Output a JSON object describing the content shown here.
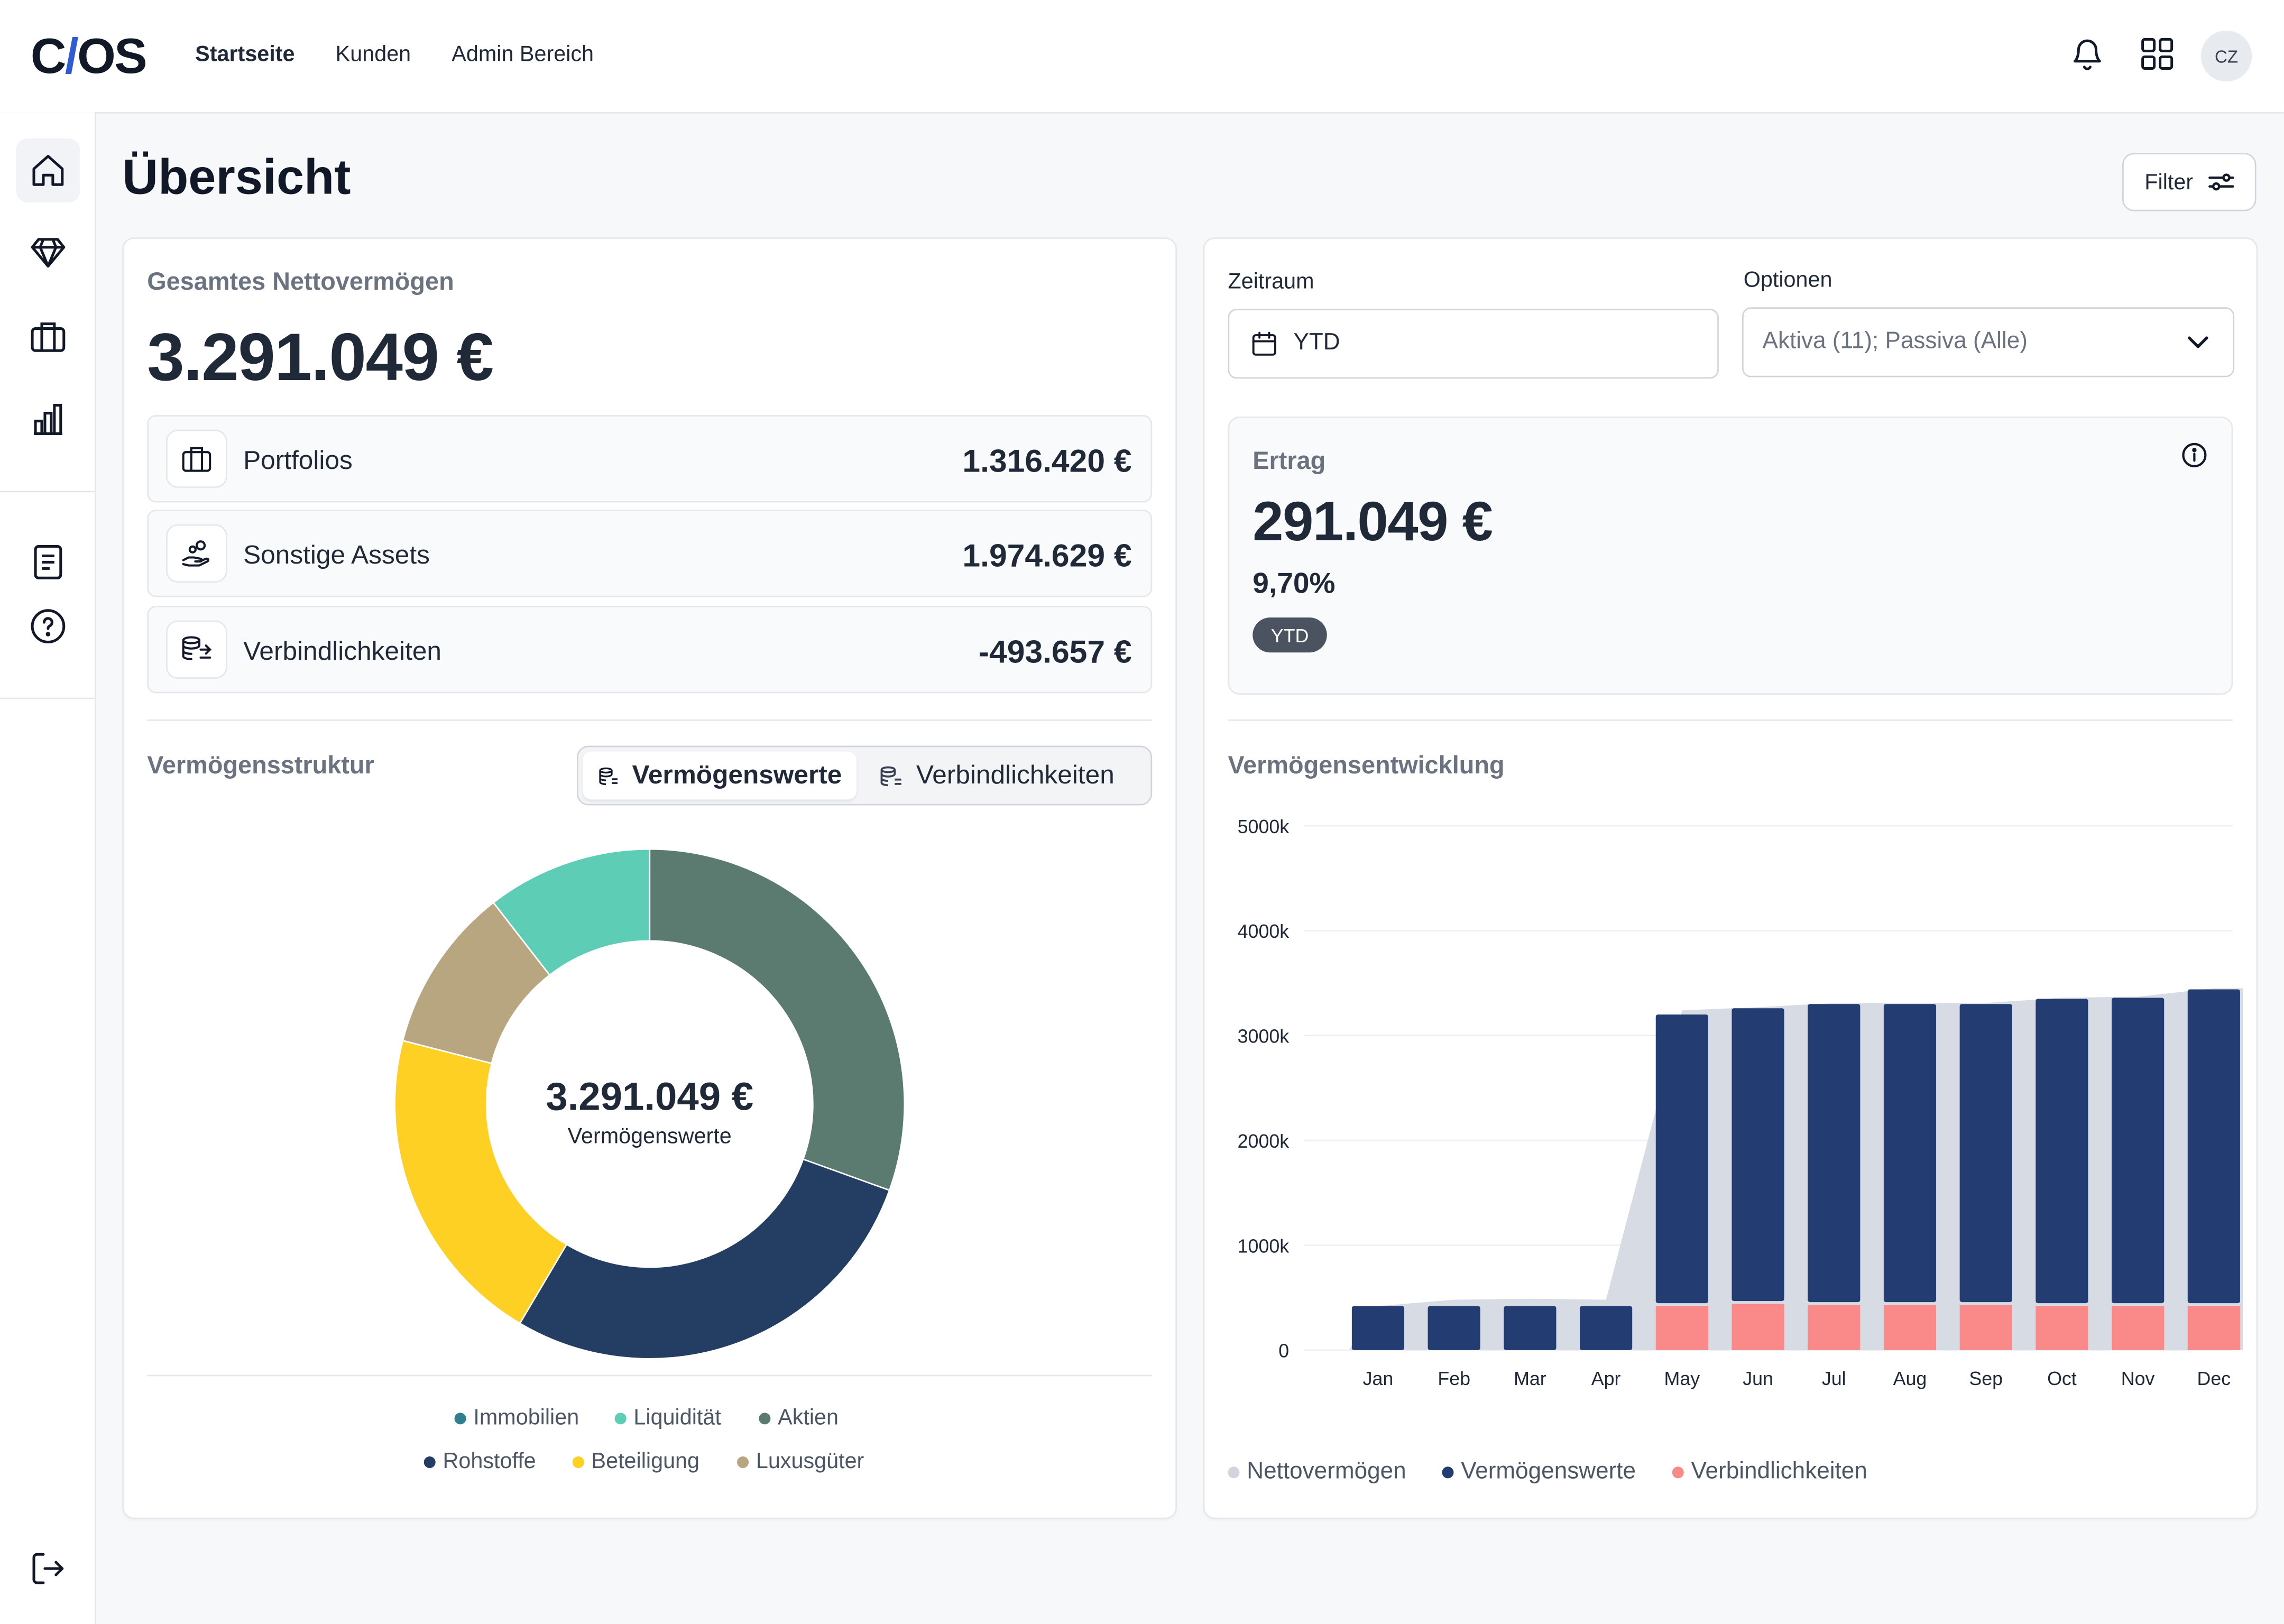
{
  "app": {
    "logo_text_a": "C",
    "logo_text_slash": "/",
    "logo_text_b": "OS",
    "nav": [
      "Startseite",
      "Kunden",
      "Admin Bereich"
    ],
    "avatar_initials": "CZ"
  },
  "page": {
    "title": "Übersicht",
    "filter_label": "Filter"
  },
  "networth": {
    "label": "Gesamtes Nettovermögen",
    "value": "3.291.049 €",
    "rows": [
      {
        "label": "Portfolios",
        "value": "1.316.420 €"
      },
      {
        "label": "Sonstige Assets",
        "value": "1.974.629 €"
      },
      {
        "label": "Verbindlichkeiten",
        "value": "-493.657 €"
      }
    ]
  },
  "structure": {
    "title": "Vermögensstruktur",
    "toggle": [
      "Vermögenswerte",
      "Verbindlichkeiten"
    ],
    "center_value": "3.291.049 €",
    "center_label": "Vermögenswerte",
    "legend": [
      {
        "label": "Immobilien",
        "color": "#2f7f8f"
      },
      {
        "label": "Liquidität",
        "color": "#5ecdb6"
      },
      {
        "label": "Aktien",
        "color": "#5b7b70"
      },
      {
        "label": "Rohstoffe",
        "color": "#233e62"
      },
      {
        "label": "Beteiligung",
        "color": "#fdd023"
      },
      {
        "label": "Luxusgüter",
        "color": "#b7a680"
      }
    ]
  },
  "filters": {
    "period_label": "Zeitraum",
    "period_value": "YTD",
    "options_label": "Optionen",
    "options_value": "Aktiva (11); Passiva (Alle)"
  },
  "ertrag": {
    "label": "Ertrag",
    "value": "291.049 €",
    "percent": "9,70%",
    "badge": "YTD"
  },
  "development": {
    "title": "Vermögensentwicklung"
  },
  "chart_data": [
    {
      "type": "pie",
      "title": "Vermögensstruktur",
      "categories": [
        "Aktien",
        "Rohstoffe",
        "Beteiligung",
        "Luxusgüter",
        "Liquidität",
        "Immobilien"
      ],
      "values": [
        30.5,
        28.0,
        20.5,
        10.5,
        10.5,
        0
      ],
      "colors": [
        "#5b7b70",
        "#233e62",
        "#fdd023",
        "#b7a680",
        "#5ecdb6",
        "#2f7f8f"
      ]
    },
    {
      "type": "bar",
      "title": "Vermögensentwicklung",
      "categories": [
        "Jan",
        "Feb",
        "Mar",
        "Apr",
        "May",
        "Jun",
        "Jul",
        "Aug",
        "Sep",
        "Oct",
        "Nov",
        "Dec"
      ],
      "yticks": [
        "0",
        "1000k",
        "2000k",
        "3000k",
        "4000k",
        "5000k"
      ],
      "ylim": [
        0,
        5000
      ],
      "series": [
        {
          "name": "Nettovermögen",
          "color": "#d1d5db",
          "values": [
            420,
            480,
            490,
            480,
            3240,
            3270,
            3310,
            3310,
            3310,
            3360,
            3370,
            3450
          ]
        },
        {
          "name": "Vermögenswerte",
          "color": "#233d72",
          "values": [
            420,
            420,
            420,
            420,
            3200,
            3260,
            3300,
            3300,
            3300,
            3350,
            3360,
            3440
          ]
        },
        {
          "name": "Verbindlichkeiten",
          "color": "#f98a89",
          "values": [
            0,
            0,
            0,
            0,
            420,
            440,
            430,
            430,
            430,
            420,
            420,
            420
          ]
        }
      ]
    }
  ]
}
